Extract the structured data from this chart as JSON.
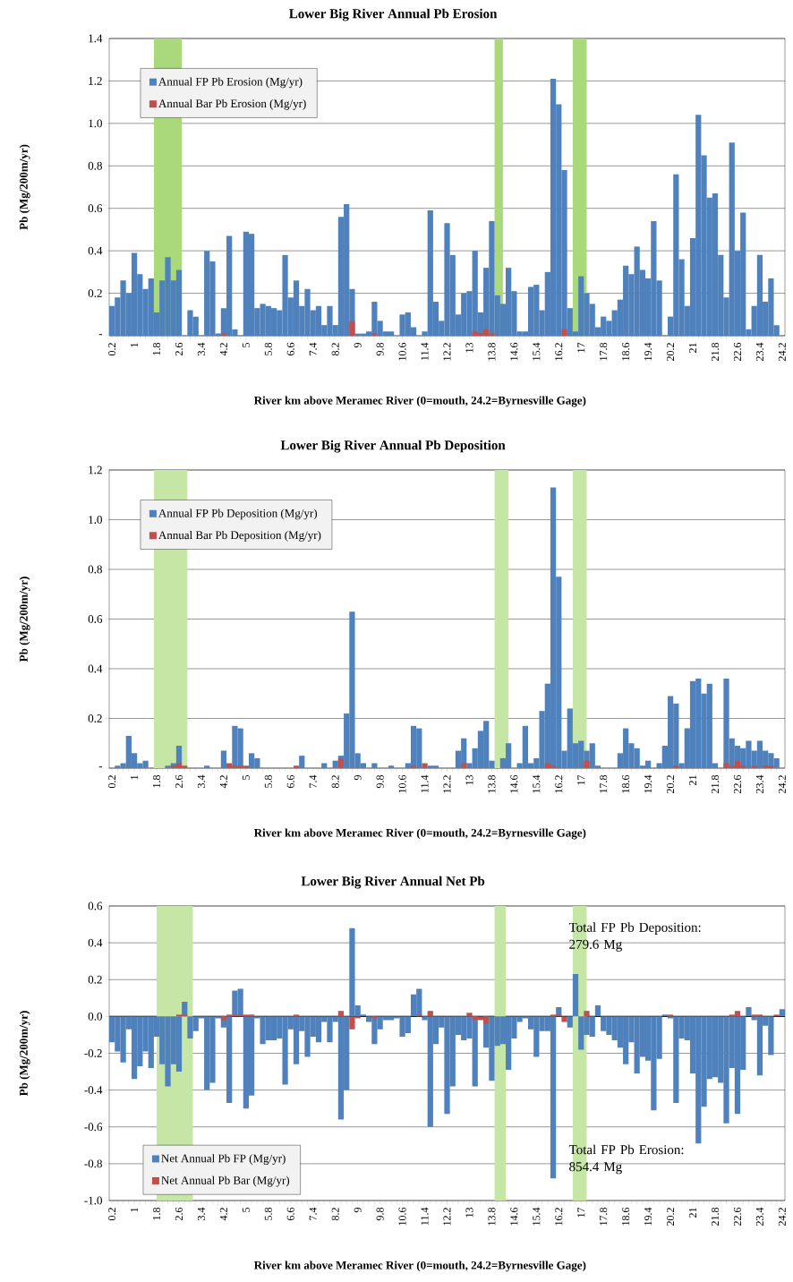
{
  "chart_data": [
    {
      "type": "bar",
      "title": "Lower Big River Annual Pb Erosion",
      "xlabel": "River km above Meramec River (0=mouth, 24.2=Byrnesville Gage)",
      "ylabel": "Pb (Mg/200m/yr)",
      "x": [
        0.2,
        0.4,
        0.6,
        0.8,
        1,
        1.2,
        1.4,
        1.6,
        1.8,
        2,
        2.2,
        2.4,
        2.6,
        2.8,
        3,
        3.2,
        3.4,
        3.6,
        3.8,
        4,
        4.2,
        4.4,
        4.6,
        4.8,
        5,
        5.2,
        5.4,
        5.6,
        5.8,
        6,
        6.2,
        6.4,
        6.6,
        6.8,
        7,
        7.2,
        7.4,
        7.6,
        7.8,
        8,
        8.2,
        8.4,
        8.6,
        8.8,
        9,
        9.2,
        9.4,
        9.6,
        9.8,
        10,
        10.2,
        10.4,
        10.6,
        10.8,
        11,
        11.2,
        11.4,
        11.6,
        11.8,
        12,
        12.2,
        12.4,
        12.6,
        12.8,
        13,
        13.2,
        13.4,
        13.6,
        13.8,
        14,
        14.2,
        14.4,
        14.6,
        14.8,
        15,
        15.2,
        15.4,
        15.6,
        15.8,
        16,
        16.2,
        16.4,
        16.6,
        16.8,
        17,
        17.2,
        17.4,
        17.6,
        17.8,
        18,
        18.2,
        18.4,
        18.6,
        18.8,
        19,
        19.2,
        19.4,
        19.6,
        19.8,
        20,
        20.2,
        20.4,
        20.6,
        20.8,
        21,
        21.2,
        21.4,
        21.6,
        21.8,
        22,
        22.2,
        22.4,
        22.6,
        22.8,
        23,
        23.2,
        23.4,
        23.6,
        23.8,
        24
      ],
      "xlim": [
        0.1,
        24.3
      ],
      "xticks": [
        0.2,
        1,
        1.8,
        2.6,
        3.4,
        4.2,
        5,
        5.8,
        6.6,
        7.4,
        8.2,
        9,
        9.8,
        10.6,
        11.4,
        12.2,
        13,
        13.8,
        14.6,
        15.4,
        16.2,
        17,
        17.8,
        18.6,
        19.4,
        20.2,
        21,
        21.8,
        22.6,
        23.4,
        24.2
      ],
      "ylim": [
        0,
        1.4
      ],
      "yticks": [
        {
          "value": 0,
          "label": "-"
        },
        0.2,
        0.4,
        0.6,
        0.8,
        {
          "value": 1,
          "label": "1.0"
        },
        1.2,
        1.4
      ],
      "grid": "y",
      "legend": "top left",
      "bands": [
        {
          "axis": "x",
          "from": 1.7,
          "to": 2.7,
          "color": "#a9d97a"
        },
        {
          "axis": "x",
          "from": 13.9,
          "to": 14.2,
          "color": "#a9d97a"
        },
        {
          "axis": "x",
          "from": 16.7,
          "to": 17.2,
          "color": "#a9d97a"
        }
      ],
      "series": [
        {
          "name": "Annual FP Pb Erosion (Mg/yr)",
          "color": "#4f81bd",
          "values": [
            0.14,
            0.18,
            0.26,
            0.2,
            0.39,
            0.29,
            0.22,
            0.27,
            0.11,
            0.26,
            0.37,
            0.26,
            0.31,
            null,
            0.12,
            0.09,
            null,
            0.4,
            0.35,
            0.01,
            0.13,
            0.47,
            0.03,
            null,
            0.49,
            0.48,
            0.13,
            0.15,
            0.14,
            0.13,
            0.12,
            0.38,
            0.18,
            0.26,
            0.14,
            0.22,
            0.12,
            0.14,
            0.05,
            0.14,
            0.05,
            0.56,
            0.62,
            0.22,
            0.01,
            0.01,
            0.02,
            0.16,
            0.07,
            0.02,
            0.02,
            null,
            0.1,
            0.11,
            0.04,
            null,
            0.02,
            0.59,
            0.16,
            0.07,
            0.53,
            0.38,
            0.1,
            0.2,
            0.21,
            0.4,
            0.11,
            0.32,
            0.54,
            0.19,
            0.15,
            0.32,
            0.21,
            0.02,
            0.02,
            0.23,
            0.24,
            0.12,
            0.3,
            1.21,
            1.09,
            0.78,
            0.13,
            0.02,
            0.28,
            0.2,
            0.15,
            0.04,
            0.09,
            0.07,
            0.12,
            0.17,
            0.33,
            0.29,
            0.42,
            0.31,
            0.27,
            0.54,
            0.26,
            null,
            0.09,
            0.76,
            0.36,
            0.14,
            0.46,
            1.04,
            0.85,
            0.65,
            0.67,
            0.38,
            0.18,
            0.91,
            0.4,
            0.58,
            0.03,
            0.14,
            0.38,
            0.16,
            0.27,
            0.05
          ]
        },
        {
          "name": "Annual Bar Pb Erosion (Mg/yr)",
          "color": "#c0504d",
          "values": [
            null,
            null,
            null,
            null,
            null,
            null,
            null,
            null,
            null,
            null,
            null,
            null,
            null,
            null,
            null,
            null,
            null,
            null,
            null,
            null,
            0.01,
            null,
            null,
            null,
            null,
            null,
            null,
            null,
            null,
            null,
            null,
            null,
            null,
            null,
            null,
            null,
            null,
            null,
            null,
            null,
            null,
            null,
            null,
            0.07,
            null,
            null,
            null,
            0.01,
            null,
            null,
            null,
            null,
            null,
            null,
            null,
            null,
            null,
            null,
            null,
            null,
            null,
            null,
            null,
            null,
            null,
            0.02,
            0.01,
            0.03,
            0.01,
            null,
            null,
            null,
            null,
            null,
            null,
            null,
            null,
            null,
            null,
            null,
            null,
            0.03,
            null,
            null,
            null,
            null,
            null,
            null,
            null,
            null,
            null,
            null,
            null,
            null,
            null,
            null,
            null,
            null,
            null,
            null,
            null,
            null,
            null,
            null,
            null,
            null,
            null,
            null,
            null,
            null,
            null,
            null,
            null,
            null,
            null,
            null,
            null,
            null,
            null,
            null
          ]
        }
      ]
    },
    {
      "type": "bar",
      "title": "Lower Big River Annual Pb Deposition",
      "xlabel": "River km above Meramec River (0=mouth, 24.2=Byrnesville Gage)",
      "ylabel": "Pb (Mg/200m/yr)",
      "x": [
        0.4,
        0.6,
        0.8,
        1,
        1.2,
        1.4,
        1.6,
        1.8,
        2,
        2.2,
        2.4,
        2.6,
        2.8,
        3,
        3.2,
        3.4,
        3.6,
        3.8,
        4,
        4.2,
        4.4,
        4.6,
        4.8,
        5,
        5.2,
        5.4,
        5.6,
        5.8,
        6,
        6.2,
        6.4,
        6.6,
        6.8,
        7,
        7.2,
        7.4,
        7.6,
        7.8,
        8,
        8.2,
        8.4,
        8.6,
        8.8,
        9,
        9.2,
        9.4,
        9.6,
        9.8,
        10,
        10.2,
        10.4,
        10.6,
        10.8,
        11,
        11.2,
        11.4,
        11.6,
        11.8,
        12,
        12.2,
        12.4,
        12.6,
        12.8,
        13,
        13.2,
        13.4,
        13.6,
        13.8,
        14,
        14.2,
        14.4,
        14.6,
        14.8,
        15,
        15.2,
        15.4,
        15.6,
        15.8,
        16,
        16.2,
        16.4,
        16.6,
        16.8,
        17,
        17.2,
        17.4,
        17.6,
        17.8,
        18,
        18.2,
        18.4,
        18.6,
        18.8,
        19,
        19.2,
        19.4,
        19.6,
        19.8,
        20,
        20.2,
        20.4,
        20.6,
        20.8,
        21,
        21.2,
        21.4,
        21.6,
        21.8,
        22,
        22.2,
        22.4,
        22.6,
        22.8,
        23,
        23.2,
        23.4,
        23.6,
        23.8,
        24
      ],
      "xlim": [
        0.1,
        24.3
      ],
      "xticks": [
        0.2,
        1,
        1.8,
        2.6,
        3.4,
        4.2,
        5,
        5.8,
        6.6,
        7.4,
        8.2,
        9,
        9.8,
        10.6,
        11.4,
        12.2,
        13,
        13.8,
        14.6,
        15.4,
        16.2,
        17,
        17.8,
        18.6,
        19.4,
        20.2,
        21,
        21.8,
        22.6,
        23.4,
        24.2
      ],
      "ylim": [
        0,
        1.2
      ],
      "yticks": [
        {
          "value": 0,
          "label": "-"
        },
        0.2,
        0.4,
        0.6,
        0.8,
        {
          "value": 1,
          "label": "1.0"
        },
        1.2
      ],
      "grid": "y",
      "legend": "top left",
      "bands": [
        {
          "axis": "x",
          "from": 1.7,
          "to": 2.9,
          "color": "#c6e6a6"
        },
        {
          "axis": "x",
          "from": 13.9,
          "to": 14.4,
          "color": "#c6e6a6"
        },
        {
          "axis": "x",
          "from": 16.7,
          "to": 17.2,
          "color": "#c6e6a6"
        }
      ],
      "series": [
        {
          "name": "Annual FP Pb Deposition (Mg/yr)",
          "color": "#4f81bd",
          "values": [
            0.01,
            0.02,
            0.13,
            0.06,
            0.02,
            0.03,
            null,
            null,
            null,
            0.01,
            0.02,
            0.09,
            null,
            null,
            null,
            null,
            0.01,
            null,
            null,
            0.07,
            null,
            0.17,
            0.16,
            null,
            0.06,
            0.04,
            null,
            null,
            null,
            null,
            null,
            null,
            null,
            0.05,
            null,
            null,
            null,
            0.02,
            null,
            0.03,
            0.05,
            0.22,
            0.63,
            0.06,
            0.02,
            null,
            0.02,
            null,
            null,
            0.01,
            null,
            null,
            0.02,
            0.17,
            0.16,
            null,
            0.01,
            0.01,
            null,
            null,
            null,
            0.07,
            0.12,
            0.02,
            0.08,
            0.15,
            0.19,
            0.03,
            null,
            0.04,
            0.1,
            null,
            0.02,
            0.17,
            0.02,
            0.04,
            0.23,
            0.34,
            1.13,
            0.77,
            0.07,
            0.24,
            0.1,
            0.11,
            0.07,
            0.1,
            0.01,
            null,
            null,
            null,
            0.06,
            0.16,
            0.1,
            0.08,
            0.01,
            0.03,
            null,
            0.02,
            0.09,
            0.29,
            0.26,
            0.02,
            0.16,
            0.35,
            0.36,
            0.3,
            0.34,
            0.02,
            null,
            0.36,
            0.12,
            0.09,
            0.08,
            0.11,
            0.07,
            0.11,
            0.07,
            0.06,
            0.04
          ]
        },
        {
          "name": "Annual Bar Pb Deposition (Mg/yr)",
          "color": "#c0504d",
          "values": [
            null,
            null,
            null,
            null,
            null,
            null,
            null,
            null,
            null,
            null,
            0.01,
            0.02,
            0.01,
            null,
            null,
            null,
            null,
            null,
            null,
            null,
            0.02,
            0.01,
            0.01,
            0.01,
            null,
            null,
            null,
            null,
            null,
            null,
            null,
            null,
            0.01,
            null,
            null,
            null,
            null,
            null,
            null,
            null,
            0.04,
            null,
            null,
            null,
            null,
            null,
            null,
            null,
            null,
            null,
            null,
            null,
            null,
            0.01,
            null,
            0.02,
            null,
            null,
            null,
            null,
            null,
            null,
            0.02,
            null,
            null,
            null,
            null,
            null,
            null,
            null,
            null,
            null,
            null,
            null,
            null,
            null,
            null,
            0.02,
            0.01,
            null,
            null,
            null,
            null,
            null,
            0.03,
            null,
            null,
            null,
            null,
            null,
            null,
            null,
            null,
            null,
            null,
            null,
            null,
            null,
            null,
            null,
            0.01,
            null,
            null,
            null,
            null,
            null,
            null,
            null,
            null,
            0.02,
            0.01,
            0.03,
            0.01,
            null,
            0.01,
            null,
            0.01,
            0.01,
            null
          ]
        }
      ]
    },
    {
      "type": "bar",
      "title": "Lower Big River Annual Net Pb",
      "xlabel": "River km above Meramec River (0=mouth, 24.2=Byrnesville Gage)",
      "ylabel": "Pb (Mg/200m/yr)",
      "x": [
        0.2,
        0.4,
        0.6,
        0.8,
        1,
        1.2,
        1.4,
        1.6,
        1.8,
        2,
        2.2,
        2.4,
        2.6,
        2.8,
        3,
        3.2,
        3.4,
        3.6,
        3.8,
        4,
        4.2,
        4.4,
        4.6,
        4.8,
        5,
        5.2,
        5.4,
        5.6,
        5.8,
        6,
        6.2,
        6.4,
        6.6,
        6.8,
        7,
        7.2,
        7.4,
        7.6,
        7.8,
        8,
        8.2,
        8.4,
        8.6,
        8.8,
        9,
        9.2,
        9.4,
        9.6,
        9.8,
        10,
        10.2,
        10.4,
        10.6,
        10.8,
        11,
        11.2,
        11.4,
        11.6,
        11.8,
        12,
        12.2,
        12.4,
        12.6,
        12.8,
        13,
        13.2,
        13.4,
        13.6,
        13.8,
        14,
        14.2,
        14.4,
        14.6,
        14.8,
        15,
        15.2,
        15.4,
        15.6,
        15.8,
        16,
        16.2,
        16.4,
        16.6,
        16.8,
        17,
        17.2,
        17.4,
        17.6,
        17.8,
        18,
        18.2,
        18.4,
        18.6,
        18.8,
        19,
        19.2,
        19.4,
        19.6,
        19.8,
        20,
        20.2,
        20.4,
        20.6,
        20.8,
        21,
        21.2,
        21.4,
        21.6,
        21.8,
        22,
        22.2,
        22.4,
        22.6,
        22.8,
        23,
        23.2,
        23.4,
        23.6,
        23.8,
        24,
        24.2
      ],
      "xlim": [
        0.1,
        24.3
      ],
      "xticks": [
        0.2,
        1,
        1.8,
        2.6,
        3.4,
        4.2,
        5,
        5.8,
        6.6,
        7.4,
        8.2,
        9,
        9.8,
        10.6,
        11.4,
        12.2,
        13,
        13.8,
        14.6,
        15.4,
        16.2,
        17,
        17.8,
        18.6,
        19.4,
        20.2,
        21,
        21.8,
        22.6,
        23.4,
        24.2
      ],
      "ylim": [
        -1,
        0.6
      ],
      "yticks": [
        {
          "value": -1,
          "label": "-1.0"
        },
        -0.8,
        -0.6,
        -0.4,
        -0.2,
        {
          "value": 0,
          "label": "0.0"
        },
        0.2,
        0.4,
        0.6
      ],
      "grid": "y",
      "legend": "bottom left",
      "annotations": [
        "Total FP Pb Deposition: 279.6 Mg",
        "Total FP Pb Erosion: 854.4 Mg"
      ],
      "bands": [
        {
          "axis": "x",
          "from": 1.8,
          "to": 3.1,
          "color": "#c6e6a6"
        },
        {
          "axis": "x",
          "from": 13.9,
          "to": 14.3,
          "color": "#c6e6a6"
        },
        {
          "axis": "x",
          "from": 16.7,
          "to": 17.2,
          "color": "#c6e6a6"
        }
      ],
      "series": [
        {
          "name": "Net Annual Pb FP (Mg/yr)",
          "color": "#4f81bd",
          "values": [
            -0.14,
            -0.19,
            -0.25,
            -0.07,
            -0.34,
            -0.27,
            -0.19,
            -0.28,
            -0.11,
            -0.26,
            -0.38,
            -0.26,
            -0.3,
            0.08,
            -0.12,
            -0.08,
            -0.01,
            -0.4,
            -0.36,
            -0.01,
            -0.06,
            -0.47,
            0.14,
            0.15,
            -0.5,
            -0.43,
            -0.01,
            -0.15,
            -0.13,
            -0.13,
            -0.12,
            -0.37,
            -0.07,
            -0.26,
            -0.08,
            -0.22,
            -0.11,
            -0.14,
            -0.03,
            -0.14,
            -0.03,
            -0.56,
            -0.4,
            0.48,
            0.06,
            0.01,
            -0.03,
            -0.15,
            -0.07,
            -0.02,
            -0.02,
            -0.01,
            -0.11,
            -0.09,
            0.12,
            0.15,
            -0.02,
            -0.6,
            -0.15,
            -0.06,
            -0.53,
            -0.38,
            -0.1,
            -0.13,
            -0.12,
            -0.38,
            null,
            -0.17,
            -0.35,
            -0.16,
            -0.15,
            -0.29,
            -0.12,
            -0.03,
            -0.01,
            -0.07,
            -0.22,
            -0.08,
            -0.08,
            -0.88,
            0.05,
            null,
            -0.06,
            0.23,
            -0.18,
            -0.1,
            -0.11,
            0.06,
            -0.08,
            -0.1,
            -0.13,
            -0.17,
            -0.26,
            -0.14,
            -0.31,
            -0.22,
            -0.24,
            -0.51,
            -0.23,
            0.01,
            -0.01,
            -0.47,
            -0.12,
            -0.13,
            -0.31,
            -0.69,
            -0.49,
            -0.34,
            -0.33,
            -0.36,
            -0.58,
            -0.28,
            -0.53,
            -0.29,
            0.05,
            -0.02,
            -0.32,
            -0.05,
            -0.21,
            null,
            0.04
          ]
        },
        {
          "name": "Net Annual Pb Bar (Mg/yr)",
          "color": "#c0504d",
          "values": [
            null,
            null,
            null,
            null,
            null,
            null,
            null,
            null,
            null,
            null,
            null,
            null,
            0.01,
            0.01,
            null,
            null,
            null,
            null,
            null,
            null,
            -0.02,
            0.01,
            0.01,
            0.01,
            0.01,
            0.01,
            null,
            null,
            null,
            null,
            null,
            null,
            null,
            0.01,
            null,
            null,
            null,
            null,
            null,
            null,
            null,
            0.03,
            null,
            -0.07,
            -0.01,
            null,
            null,
            -0.01,
            null,
            null,
            null,
            null,
            null,
            null,
            null,
            0.01,
            null,
            0.03,
            null,
            null,
            null,
            null,
            null,
            null,
            0.02,
            -0.02,
            -0.02,
            -0.04,
            null,
            null,
            null,
            null,
            null,
            null,
            null,
            null,
            null,
            null,
            null,
            0.01,
            0.01,
            -0.03,
            null,
            null,
            null,
            0.03,
            null,
            null,
            null,
            null,
            null,
            null,
            null,
            null,
            null,
            null,
            null,
            null,
            null,
            null,
            0.01,
            null,
            null,
            null,
            null,
            null,
            null,
            null,
            null,
            null,
            null,
            0.01,
            0.03,
            null,
            null,
            0.01,
            0.01,
            null,
            null,
            0.01,
            null
          ]
        }
      ]
    }
  ]
}
